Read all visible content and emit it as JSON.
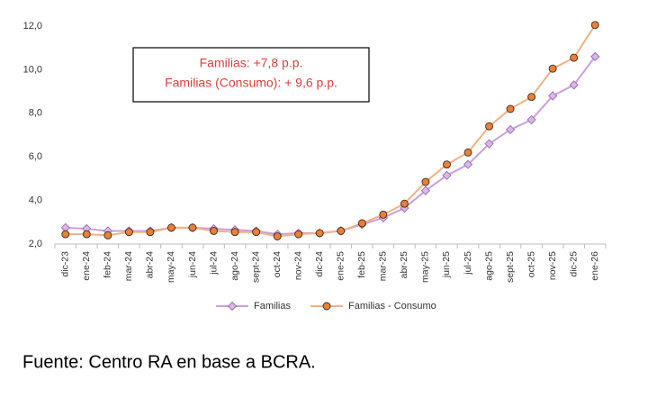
{
  "chart_data": {
    "type": "line",
    "annotations": [
      "Familias: +7,8 p.p.",
      "Familias (Consumo): + 9,6 p.p."
    ],
    "source": "Fuente: Centro RA en base a BCRA.",
    "categories": [
      "dic-23",
      "ene-24",
      "feb-24",
      "mar-24",
      "abr-24",
      "may-24",
      "jun-24",
      "jul-24",
      "ago-24",
      "sept-24",
      "oct-24",
      "nov-24",
      "dic-24",
      "ene-25",
      "feb-25",
      "mar-25",
      "abr-25",
      "may-25",
      "jun-25",
      "jul-25",
      "ago-25",
      "sept-25",
      "oct-25",
      "nov-25",
      "dic-25",
      "ene-26"
    ],
    "series": [
      {
        "name": "Familias",
        "color": "#c9a0dc",
        "marker": "diamond",
        "marker_color": "#d9b8e8",
        "marker_edge": "#9b6bb0",
        "values": [
          2.75,
          2.7,
          2.6,
          2.6,
          2.6,
          2.75,
          2.75,
          2.7,
          2.65,
          2.6,
          2.45,
          2.5,
          2.5,
          2.6,
          2.9,
          3.2,
          3.65,
          4.45,
          5.15,
          5.65,
          6.6,
          7.25,
          7.7,
          8.8,
          9.3,
          10.6
        ]
      },
      {
        "name": "Familias - Consumo",
        "color": "#f4b183",
        "marker": "circle",
        "marker_color": "#e8803a",
        "marker_edge": "#3b2a1a",
        "values": [
          2.45,
          2.45,
          2.4,
          2.55,
          2.55,
          2.75,
          2.75,
          2.6,
          2.55,
          2.55,
          2.35,
          2.45,
          2.5,
          2.6,
          2.95,
          3.35,
          3.85,
          4.85,
          5.65,
          6.2,
          7.4,
          8.2,
          8.75,
          10.05,
          10.55,
          12.05
        ]
      }
    ],
    "ylim": [
      2,
      12
    ],
    "yticks": [
      {
        "value": 2,
        "label": "2,0"
      },
      {
        "value": 4,
        "label": "4,0"
      },
      {
        "value": 6,
        "label": "6,0"
      },
      {
        "value": 8,
        "label": "8,0"
      },
      {
        "value": 10,
        "label": "10,0"
      },
      {
        "value": 12,
        "label": "12,0"
      }
    ],
    "grid": false,
    "legend": "bottom"
  }
}
